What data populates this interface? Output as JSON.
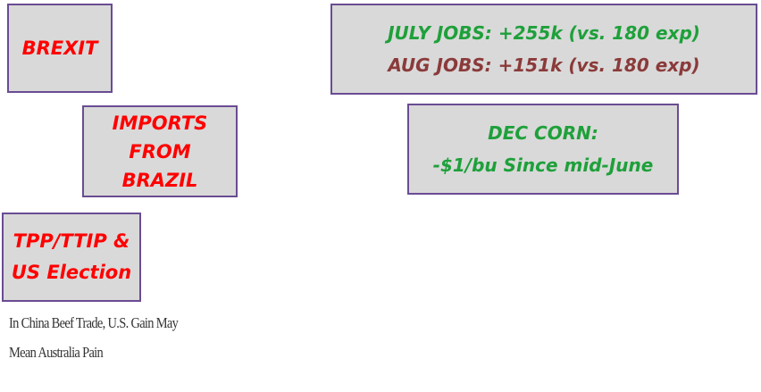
{
  "boxes": [
    {
      "lines": [
        "BREXIT"
      ]
    },
    {
      "lines": [
        "IMPORTS",
        "FROM",
        "BRAZIL"
      ]
    },
    {
      "lines": [
        "TPP/TTIP &",
        "US Election"
      ]
    },
    {
      "lines": [
        "JULY JOBS: +255k (vs. 180 exp)",
        "AUG JOBS: +151k (vs. 180 exp)"
      ]
    },
    {
      "lines": [
        "DEC CORN:",
        "-$1/bu Since mid-June"
      ]
    }
  ],
  "headline": {
    "lines": [
      "In China Beef Trade, U.S. Gain May",
      "Mean Australia Pain"
    ]
  }
}
